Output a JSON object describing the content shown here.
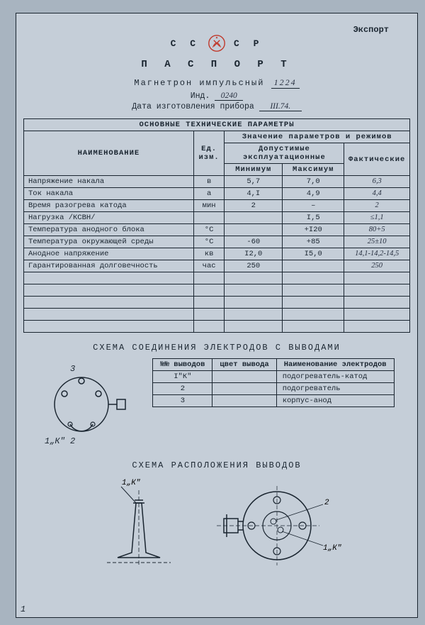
{
  "export_label": "Экспорт",
  "cccp_left": "С С",
  "cccp_right": "С Р",
  "passport": "П А С П О Р Т",
  "subtitle_text": "Магнетрон импульсный",
  "subtitle_value": "1224",
  "ind_label": "Инд.",
  "ind_value": "0240",
  "mfg_label": "Дата изготовления прибора",
  "mfg_value": "III.74.",
  "params_title": "ОСНОВНЫЕ ТЕХНИЧЕСКИЕ ПАРАМЕТРЫ",
  "col_name": "НАИМЕНОВАНИЕ",
  "col_unit": "Ед. изм.",
  "col_values": "Значение параметров и режимов",
  "col_allowed": "Допустимые эксплуатационные",
  "col_actual": "Фактические",
  "col_min": "Минимум",
  "col_max": "Максимум",
  "rows": [
    {
      "name": "Напряжение накала",
      "unit": "в",
      "min": "5,7",
      "max": "7,0",
      "act": "6,3"
    },
    {
      "name": "Ток накала",
      "unit": "а",
      "min": "4,I",
      "max": "4,9",
      "act": "4,4"
    },
    {
      "name": "Время разогрева катода",
      "unit": "мин",
      "min": "2",
      "max": "–",
      "act": "2"
    },
    {
      "name": "Нагрузка   /КСВН/",
      "unit": "",
      "min": "",
      "max": "I,5",
      "act": "≤1,1"
    },
    {
      "name": "Температура анодного блока",
      "unit": "°С",
      "min": "",
      "max": "+I20",
      "act": "80+5"
    },
    {
      "name": "Температура окружающей среды",
      "unit": "°С",
      "min": "-60",
      "max": "+85",
      "act": "25±10"
    },
    {
      "name": "Анодное напряжение",
      "unit": "кв",
      "min": "I2,0",
      "max": "I5,0",
      "act": "14,1-14,2-14,5"
    },
    {
      "name": "Гарантированная долговечность",
      "unit": "час",
      "min": "250",
      "max": "",
      "act": "250"
    }
  ],
  "conn_title": "СХЕМА СОЕДИНЕНИЯ ЭЛЕКТРОДОВ С ВЫВОДАМИ",
  "pin_col1": "№№ выводов",
  "pin_col2": "цвет вывода",
  "pin_col3": "Наименование электродов",
  "pins": [
    {
      "n": "I\"К\"",
      "c": "",
      "desc": "подогреватель-катод"
    },
    {
      "n": "2",
      "c": "",
      "desc": "подогреватель"
    },
    {
      "n": "3",
      "c": "",
      "desc": "корпус-анод"
    }
  ],
  "layout_title": "СХЕМА РАСПОЛОЖЕНИЯ ВЫВОДОВ",
  "pin_label_3": "3",
  "pin_label_1k2": "1„К\" 2",
  "pin_label_1k": "1„К\"",
  "pin_label_2": "2",
  "page_number": "1",
  "emblem_color": "#c0392b",
  "border_color": "#1a2530",
  "bg_color": "#c5ced8",
  "hand_color": "#283040"
}
